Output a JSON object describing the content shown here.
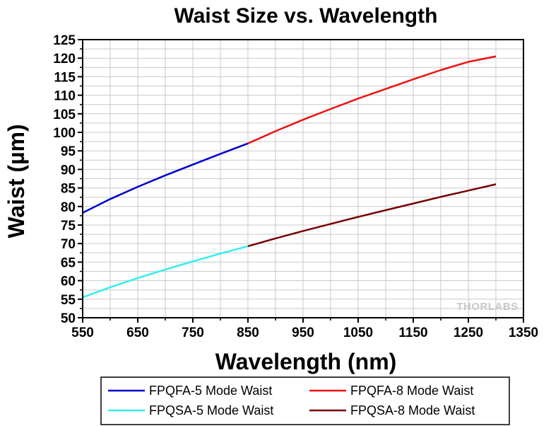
{
  "chart_data": {
    "type": "line",
    "title": "Waist Size vs. Wavelength",
    "xlabel": "Wavelength (nm)",
    "ylabel": "Waist (µm)",
    "xlim": [
      550,
      1350
    ],
    "ylim": [
      50,
      125
    ],
    "xticks": [
      550,
      650,
      750,
      850,
      950,
      1050,
      1150,
      1250,
      1350
    ],
    "yticks": [
      50,
      55,
      60,
      65,
      70,
      75,
      80,
      85,
      90,
      95,
      100,
      105,
      110,
      115,
      120,
      125
    ],
    "grid": true,
    "legend_position": "bottom",
    "watermark": "THORLABS",
    "series": [
      {
        "name": "FPQFA-5 Mode Waist",
        "color": "#0000cc",
        "x": [
          550,
          600,
          650,
          700,
          750,
          800,
          850
        ],
        "y": [
          78.3,
          82.0,
          85.3,
          88.4,
          91.3,
          94.2,
          97.0
        ]
      },
      {
        "name": "FPQFA-8 Mode Waist",
        "color": "#ee1111",
        "x": [
          850,
          900,
          950,
          1000,
          1050,
          1100,
          1150,
          1200,
          1250,
          1300
        ],
        "y": [
          97.0,
          100.3,
          103.4,
          106.3,
          109.1,
          111.7,
          114.3,
          116.8,
          119.0,
          120.5
        ]
      },
      {
        "name": "FPQSA-5 Mode Waist",
        "color": "#33eeee",
        "x": [
          550,
          600,
          650,
          700,
          750,
          800,
          850
        ],
        "y": [
          55.5,
          58.2,
          60.7,
          63.0,
          65.2,
          67.3,
          69.3
        ]
      },
      {
        "name": "FPQSA-8 Mode Waist",
        "color": "#770000",
        "x": [
          850,
          900,
          950,
          1000,
          1050,
          1100,
          1150,
          1200,
          1250,
          1300
        ],
        "y": [
          69.3,
          71.4,
          73.4,
          75.3,
          77.2,
          79.0,
          80.8,
          82.6,
          84.3,
          86.0
        ]
      }
    ]
  }
}
